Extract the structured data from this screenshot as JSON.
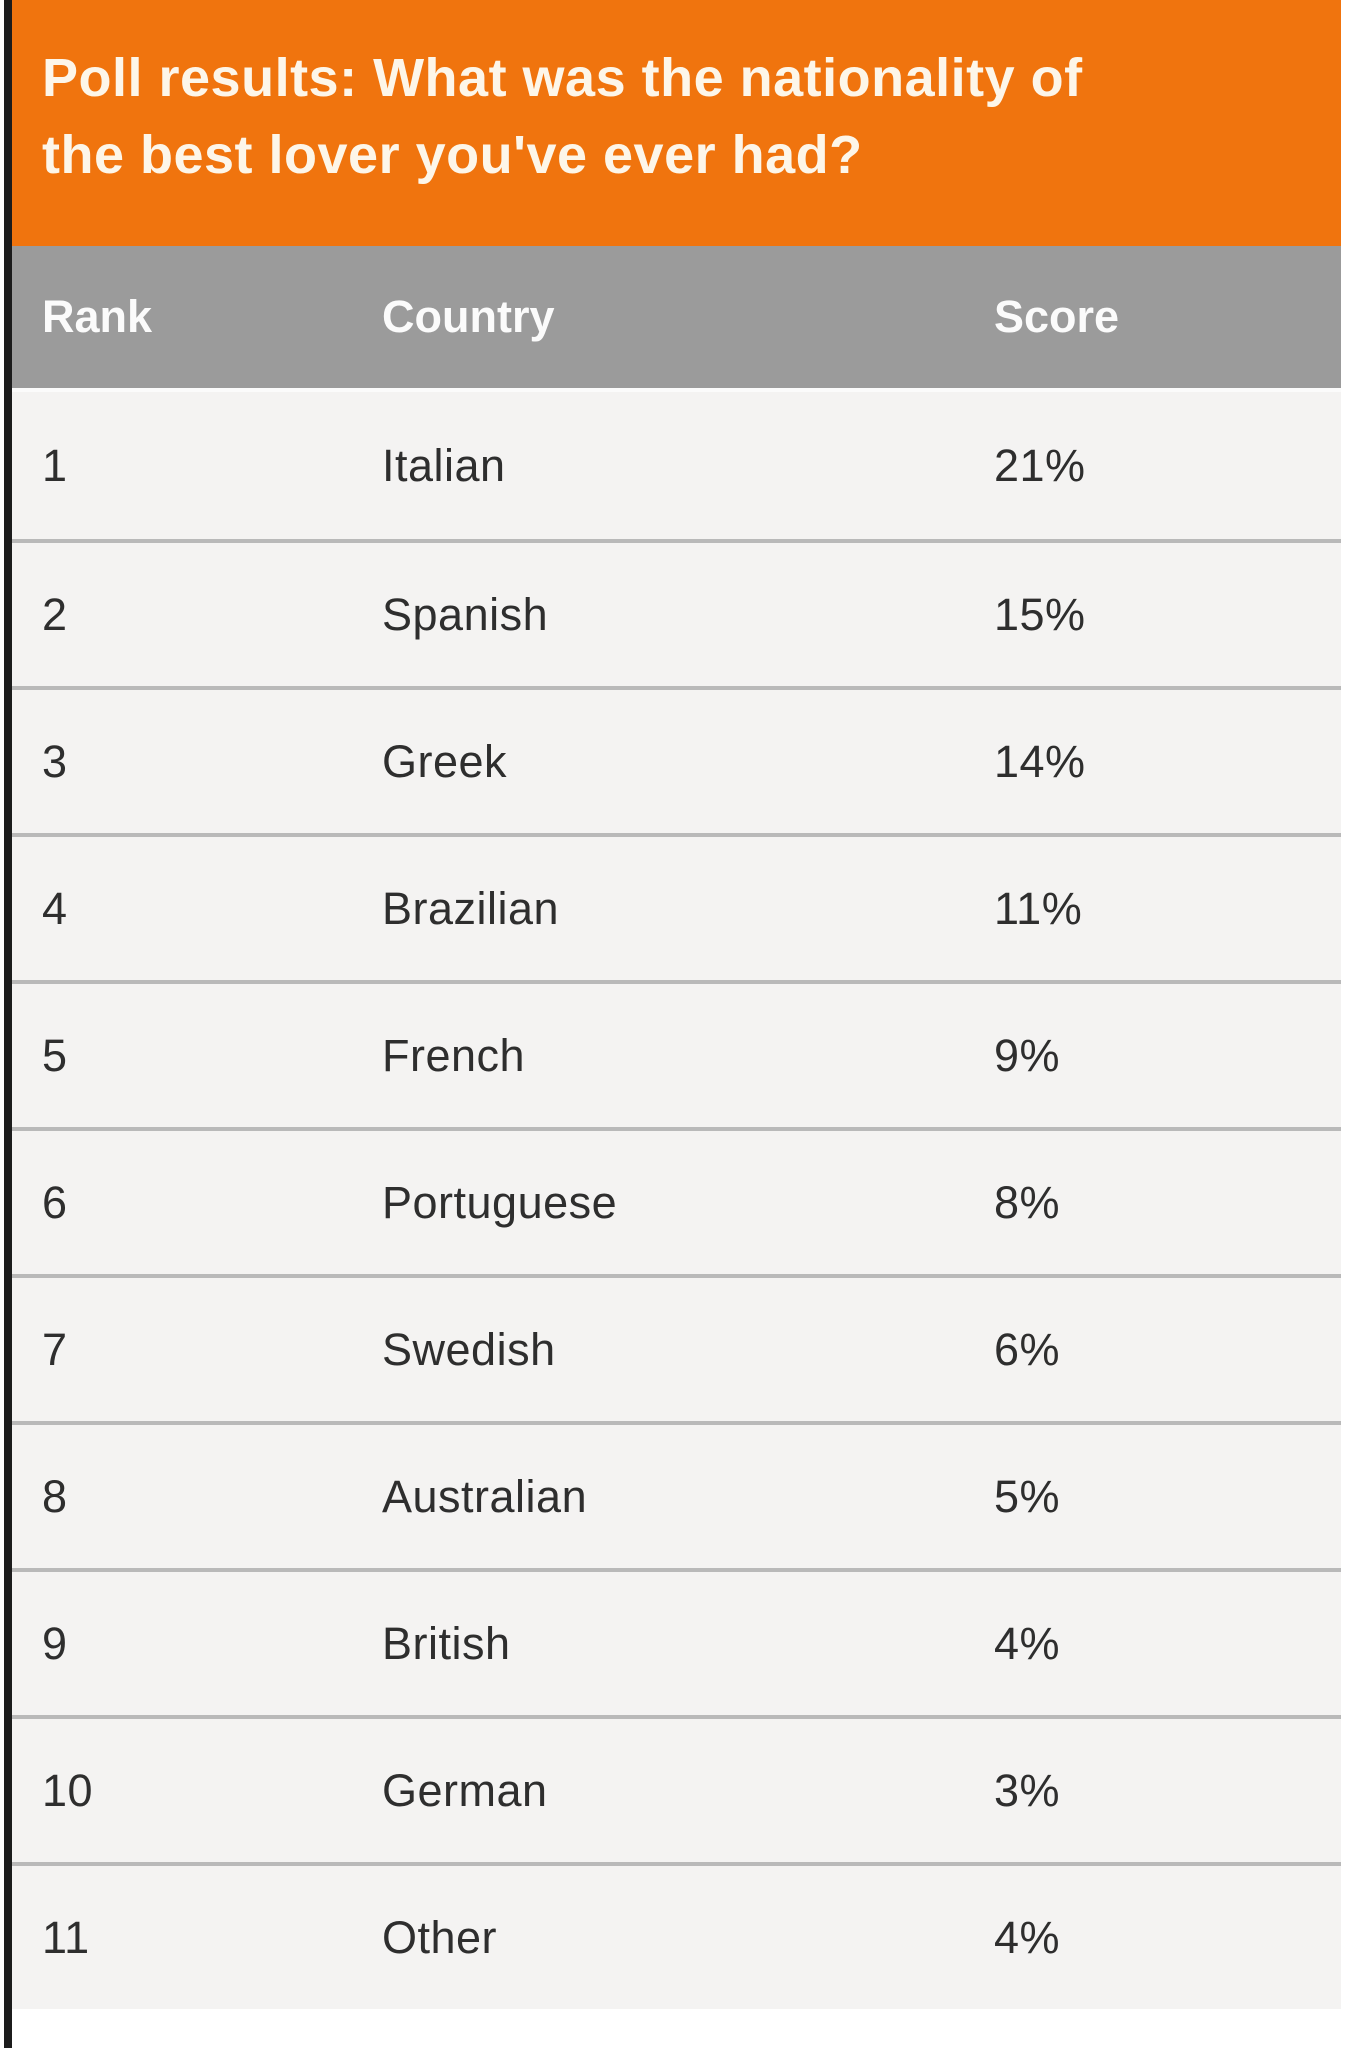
{
  "header": {
    "title": "Poll results: What was the nationality of the best lover you've ever had?"
  },
  "table": {
    "columns": [
      "Rank",
      "Country",
      "Score"
    ],
    "rows": [
      {
        "rank": "1",
        "country": "Italian",
        "score": "21%"
      },
      {
        "rank": "2",
        "country": "Spanish",
        "score": "15%"
      },
      {
        "rank": "3",
        "country": "Greek",
        "score": "14%"
      },
      {
        "rank": "4",
        "country": "Brazilian",
        "score": "11%"
      },
      {
        "rank": "5",
        "country": "French",
        "score": "9%"
      },
      {
        "rank": "6",
        "country": "Portuguese",
        "score": "8%"
      },
      {
        "rank": "7",
        "country": "Swedish",
        "score": "6%"
      },
      {
        "rank": "8",
        "country": "Australian",
        "score": "5%"
      },
      {
        "rank": "9",
        "country": "British",
        "score": "4%"
      },
      {
        "rank": "10",
        "country": "German",
        "score": "3%"
      },
      {
        "rank": "11",
        "country": "Other",
        "score": "4%"
      }
    ]
  },
  "colors": {
    "banner_bg": "#f0740e",
    "banner_text": "#fdf6e9",
    "table_header_bg": "#9b9b9b",
    "table_header_text": "#fbfbfb",
    "row_bg": "#f4f3f2",
    "row_separator": "#b9b9b9",
    "row_text": "#2e2e2e",
    "left_edge": "#1c1c1c"
  },
  "chart_data": {
    "type": "table",
    "title": "Poll results: What was the nationality of the best lover you've ever had?",
    "columns": [
      "Rank",
      "Country",
      "Score"
    ],
    "categories": [
      "Italian",
      "Spanish",
      "Greek",
      "Brazilian",
      "French",
      "Portuguese",
      "Swedish",
      "Australian",
      "British",
      "German",
      "Other"
    ],
    "values_percent": [
      21,
      15,
      14,
      11,
      9,
      8,
      6,
      5,
      4,
      3,
      4
    ],
    "rows": [
      [
        1,
        "Italian",
        "21%"
      ],
      [
        2,
        "Spanish",
        "15%"
      ],
      [
        3,
        "Greek",
        "14%"
      ],
      [
        4,
        "Brazilian",
        "11%"
      ],
      [
        5,
        "French",
        "9%"
      ],
      [
        6,
        "Portuguese",
        "8%"
      ],
      [
        7,
        "Swedish",
        "6%"
      ],
      [
        8,
        "Australian",
        "5%"
      ],
      [
        9,
        "British",
        "4%"
      ],
      [
        10,
        "German",
        "3%"
      ],
      [
        11,
        "Other",
        "4%"
      ]
    ]
  }
}
